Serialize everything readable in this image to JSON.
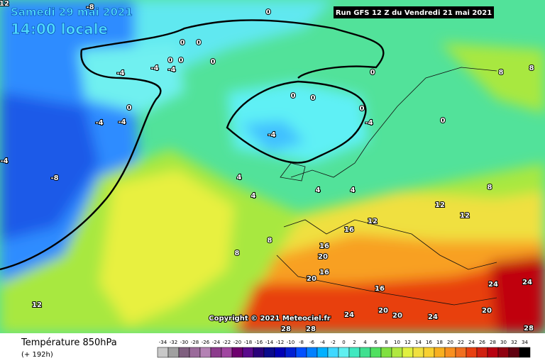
{
  "header": {
    "date": "Samedi 29 mai 2021",
    "time": "14:00 locale",
    "run": "Run GFS 12 Z du Vendredi 21 mai 2021"
  },
  "copyright": "Copyright © 2021 Meteociel.fr",
  "legend": {
    "title": "Température 850hPa",
    "lead": "(+ 192h)",
    "scale": [
      -34,
      -32,
      -30,
      -28,
      -26,
      -24,
      -22,
      -20,
      -18,
      -16,
      -14,
      -12,
      -10,
      -8,
      -6,
      -4,
      -2,
      0,
      2,
      4,
      6,
      8,
      10,
      12,
      14,
      16,
      18,
      20,
      22,
      24,
      26,
      28,
      30,
      32,
      34
    ],
    "colors": [
      "#c8c8c8",
      "#a0a0a0",
      "#806080",
      "#9a6a9a",
      "#b482b4",
      "#8c3c8c",
      "#a046a0",
      "#6e006e",
      "#5a0a8c",
      "#2a007a",
      "#0a0a8c",
      "#0000b4",
      "#0020d2",
      "#0050ff",
      "#0080ff",
      "#00b0ff",
      "#40d8ff",
      "#60f0f0",
      "#40e8c0",
      "#40e090",
      "#50e060",
      "#80e040",
      "#b0e840",
      "#e0f040",
      "#f0e040",
      "#f8d030",
      "#f8b020",
      "#f89020",
      "#f07020",
      "#e84010",
      "#d02010",
      "#b80010",
      "#900010",
      "#600010",
      "#000000"
    ]
  },
  "contour_labels": [
    12,
    -8,
    0,
    0,
    0,
    0,
    -4,
    -4,
    -4,
    0,
    0,
    0,
    8,
    8,
    0,
    0,
    0,
    -4,
    -4,
    0,
    0,
    -4,
    -4,
    -4,
    -8,
    4,
    4,
    4,
    8,
    12,
    12,
    16,
    12,
    16,
    20,
    16,
    20,
    16,
    20,
    20,
    24,
    24,
    20,
    24,
    24,
    28,
    28,
    28,
    8,
    8,
    4,
    12
  ]
}
